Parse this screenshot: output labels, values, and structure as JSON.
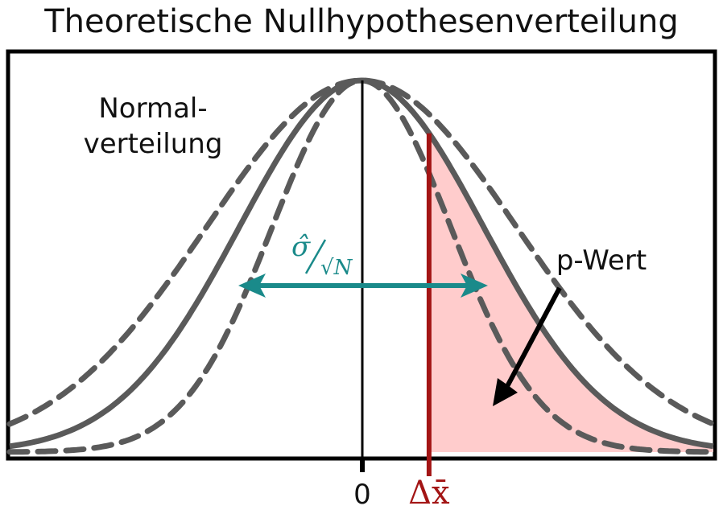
{
  "title": "Theoretische Nullhypothesenverteilung",
  "labels": {
    "normal_line1": "Normal-",
    "normal_line2": "verteilung",
    "p_value": "p-Wert",
    "zero": "0",
    "delta_x": "Δx̄",
    "sigma_hat": "σ̂",
    "sqrt_n": "√N"
  },
  "colors": {
    "curve": "#5a5a5a",
    "frame": "#000000",
    "red_line": "#a31515",
    "p_fill": "#ffcccc",
    "teal": "#1a8a8a",
    "arrow": "#000000"
  },
  "params": {
    "x_min": -3.75,
    "x_max": 3.75,
    "delta_x": 0.72,
    "sigma_solid": 1.3,
    "sigma_dashed_wide": 1.65,
    "sigma_dashed_narrow": 0.95
  }
}
